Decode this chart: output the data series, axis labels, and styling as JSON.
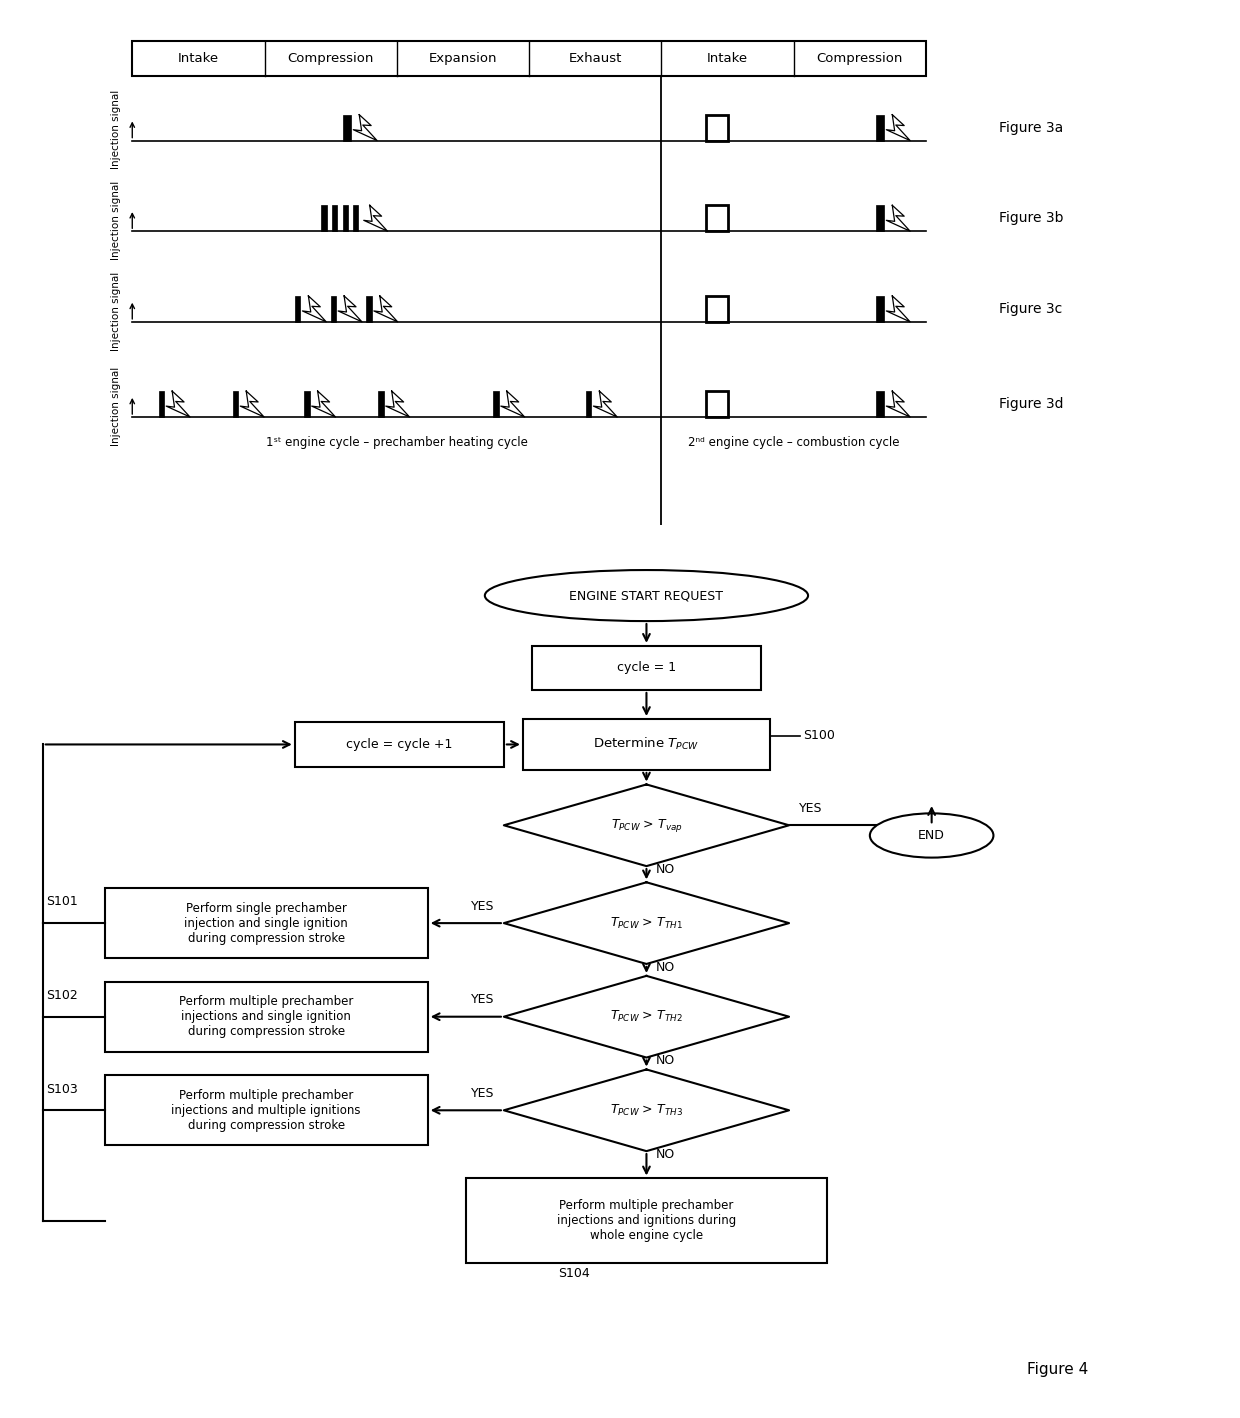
{
  "fig_width": 12.4,
  "fig_height": 14.18,
  "bg_color": "#ffffff",
  "header_labels": [
    "Intake",
    "Compression",
    "Expansion",
    "Exhaust",
    "Intake",
    "Compression"
  ],
  "figure_labels": [
    "Figure 3a",
    "Figure 3b",
    "Figure 3c",
    "Figure 3d"
  ],
  "bottom_label_1st": "1ˢᵗ engine cycle – prechamber heating cycle",
  "bottom_label_2nd": "2ⁿᵈ engine cycle – combustion cycle"
}
